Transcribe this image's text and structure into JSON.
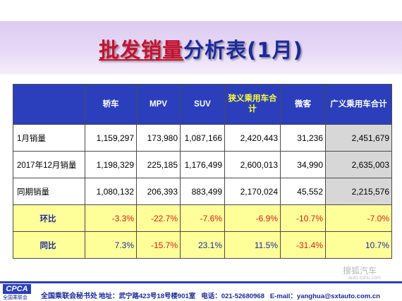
{
  "title": {
    "highlight": "批发销量",
    "rest": "分析表(1月)"
  },
  "chart_data": {
    "type": "table",
    "columns": [
      "",
      "轿车",
      "MPV",
      "SUV",
      "狭义乘用车合计",
      "微客",
      "广义乘用车合计"
    ],
    "rows": [
      {
        "label": "1月销量",
        "values": [
          "1,159,297",
          "173,980",
          "1,087,166",
          "2,420,443",
          "31,236",
          "2,451,679"
        ]
      },
      {
        "label": "2017年12月销量",
        "values": [
          "1,198,329",
          "225,185",
          "1,176,499",
          "2,600,013",
          "34,990",
          "2,635,003"
        ]
      },
      {
        "label": "同期销量",
        "values": [
          "1,080,132",
          "206,393",
          "883,499",
          "2,170,024",
          "45,552",
          "2,215,576"
        ]
      },
      {
        "label": "环比",
        "values": [
          "-3.3%",
          "-22.7%",
          "-7.6%",
          "-6.9%",
          "-10.7%",
          "-7.0%"
        ]
      },
      {
        "label": "同比",
        "values": [
          "7.3%",
          "-15.7%",
          "23.1%",
          "11.5%",
          "-31.4%",
          "10.7%"
        ]
      }
    ]
  },
  "colors": {
    "header_bg": "#2b3fbd",
    "header_highlight_text": "#ffff33",
    "ratio_row_bg": "#ffff99",
    "negative_text": "#e01818",
    "positive_text": "#1b2a9c",
    "total_column_bg": "#d7d7d7"
  },
  "footer": {
    "logo": "CPCA",
    "logo_sub": "全国乘联会",
    "org": "全国乘联会秘书处",
    "address": "地址：武宁路423号18号楼901室",
    "phone": "电话：021-52680968",
    "email": "E-mail：yanghua@sxtauto.com.cn"
  },
  "watermark": {
    "text": "搜狐汽车",
    "sub": "auto.sohu.com"
  }
}
